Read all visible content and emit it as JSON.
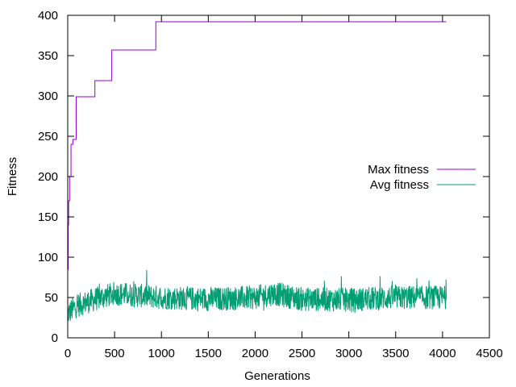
{
  "chart_data": {
    "type": "line",
    "title": "",
    "xlabel": "Generations",
    "ylabel": "Fitness",
    "xlim": [
      0,
      4500
    ],
    "ylim": [
      0,
      400
    ],
    "xticks": [
      0,
      500,
      1000,
      1500,
      2000,
      2500,
      3000,
      3500,
      4000,
      4500
    ],
    "yticks": [
      0,
      50,
      100,
      150,
      200,
      250,
      300,
      350,
      400
    ],
    "grid": false,
    "legend_position": "right",
    "series": [
      {
        "name": "Max fitness",
        "color": "#9400d3",
        "style": "step",
        "x": [
          0,
          5,
          10,
          20,
          35,
          55,
          90,
          290,
          470,
          940,
          4040
        ],
        "y": [
          85,
          140,
          170,
          200,
          240,
          246,
          299,
          319,
          357,
          392,
          392
        ]
      },
      {
        "name": "Avg fitness",
        "color": "#009e73",
        "style": "noisy",
        "x_range": [
          0,
          4040
        ],
        "mean_profile": {
          "x": [
            0,
            100,
            300,
            500,
            700,
            1000,
            1500,
            2000,
            2200,
            2500,
            3000,
            3500,
            4040
          ],
          "y": [
            30,
            40,
            48,
            55,
            53,
            50,
            48,
            50,
            55,
            48,
            47,
            50,
            50
          ]
        },
        "spread": 15,
        "max_observed": 95,
        "min_observed": 18
      }
    ]
  }
}
